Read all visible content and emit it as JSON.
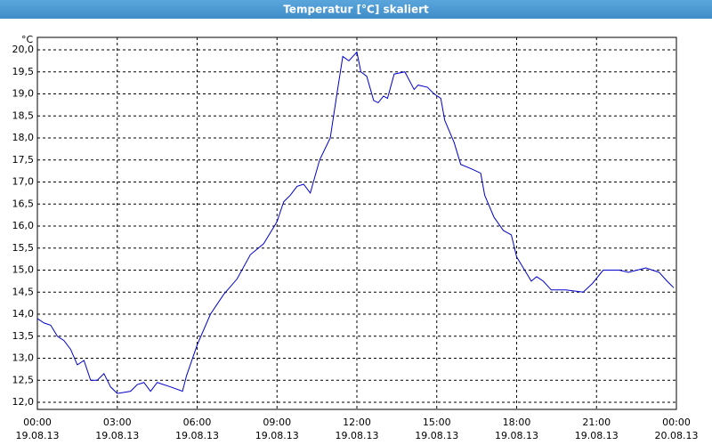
{
  "chart_data": {
    "type": "line",
    "title": "Temperatur [°C] skaliert",
    "y_unit": "°C",
    "x": [
      0,
      0.25,
      0.5,
      0.75,
      1,
      1.25,
      1.5,
      1.75,
      2,
      2.25,
      2.5,
      2.75,
      3,
      3.5,
      3.75,
      4,
      4.25,
      4.5,
      5,
      5.45,
      5.6,
      6,
      6.5,
      7,
      7.5,
      8,
      8.5,
      9,
      9.25,
      9.5,
      9.75,
      10,
      10.25,
      10.6,
      11,
      11.25,
      11.47,
      11.7,
      12,
      12.15,
      12.37,
      12.63,
      12.8,
      13,
      13.15,
      13.4,
      13.8,
      14.15,
      14.3,
      14.65,
      14.9,
      15.15,
      15.3,
      15.65,
      15.9,
      16.3,
      16.65,
      16.8,
      17.15,
      17.5,
      17.8,
      18,
      18.3,
      18.55,
      18.75,
      19,
      19.3,
      19.85,
      20.5,
      20.85,
      21.25,
      21.85,
      22.2,
      22.85,
      23.35,
      23.65,
      23.9
    ],
    "series": [
      {
        "name": "Temperatur",
        "color": "#0000cc",
        "values": [
          13.9,
          13.8,
          13.75,
          13.5,
          13.4,
          13.2,
          12.85,
          12.95,
          12.5,
          12.5,
          12.65,
          12.35,
          12.2,
          12.25,
          12.4,
          12.45,
          12.25,
          12.45,
          12.35,
          12.25,
          12.6,
          13.3,
          14.0,
          14.45,
          14.8,
          15.35,
          15.6,
          16.1,
          16.55,
          16.7,
          16.9,
          16.95,
          16.75,
          17.5,
          18.0,
          19.0,
          19.85,
          19.75,
          19.95,
          19.5,
          19.4,
          18.85,
          18.8,
          18.95,
          18.9,
          19.45,
          19.5,
          19.1,
          19.2,
          19.15,
          19.0,
          18.9,
          18.4,
          17.9,
          17.4,
          17.3,
          17.2,
          16.7,
          16.2,
          15.9,
          15.8,
          15.3,
          15.0,
          14.75,
          14.85,
          14.75,
          14.55,
          14.55,
          14.5,
          14.7,
          15.0,
          15.0,
          14.95,
          15.05,
          14.95,
          14.75,
          14.6
        ]
      }
    ],
    "xlim": [
      0,
      24
    ],
    "xticks": [
      {
        "value": 0,
        "label": "00:00",
        "date": "19.08.13"
      },
      {
        "value": 3,
        "label": "03:00",
        "date": "19.08.13"
      },
      {
        "value": 6,
        "label": "06:00",
        "date": "19.08.13"
      },
      {
        "value": 9,
        "label": "09:00",
        "date": "19.08.13"
      },
      {
        "value": 12,
        "label": "12:00",
        "date": "19.08.13"
      },
      {
        "value": 15,
        "label": "15:00",
        "date": "19.08.13"
      },
      {
        "value": 18,
        "label": "18:00",
        "date": "19.08.13"
      },
      {
        "value": 21,
        "label": "21:00",
        "date": "19.08.13"
      },
      {
        "value": 24,
        "label": "00:00",
        "date": "20.08.13"
      }
    ],
    "ylim": [
      12,
      20
    ],
    "yticks": [
      {
        "value": 12,
        "label": "12,0"
      },
      {
        "value": 12.5,
        "label": "12,5"
      },
      {
        "value": 13,
        "label": "13,0"
      },
      {
        "value": 13.5,
        "label": "13,5"
      },
      {
        "value": 14,
        "label": "14,0"
      },
      {
        "value": 14.5,
        "label": "14,5"
      },
      {
        "value": 15,
        "label": "15,0"
      },
      {
        "value": 15.5,
        "label": "15,5"
      },
      {
        "value": 16,
        "label": "16,0"
      },
      {
        "value": 16.5,
        "label": "16,5"
      },
      {
        "value": 17,
        "label": "17,0"
      },
      {
        "value": 17.5,
        "label": "17,5"
      },
      {
        "value": 18,
        "label": "18,0"
      },
      {
        "value": 18.5,
        "label": "18,5"
      },
      {
        "value": 19,
        "label": "19,0"
      },
      {
        "value": 19.5,
        "label": "19,5"
      },
      {
        "value": 20,
        "label": "20,0"
      }
    ],
    "grid": true
  }
}
